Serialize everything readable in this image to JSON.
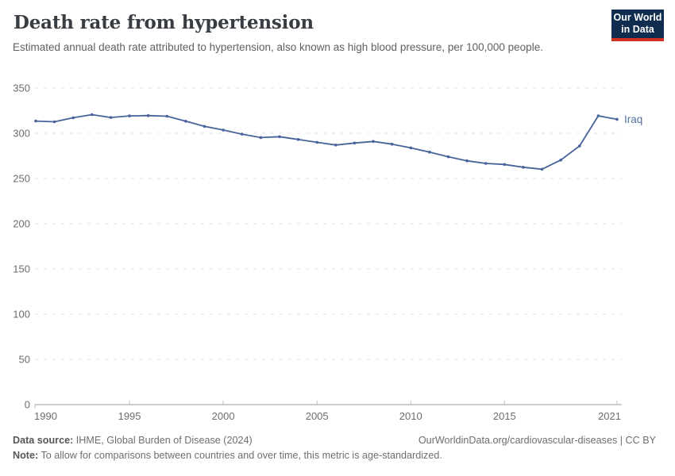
{
  "header": {
    "title": "Death rate from hypertension",
    "subtitle": "Estimated annual death rate attributed to hypertension, also known as high blood pressure, per 100,000 people.",
    "logo": {
      "line1": "Our World",
      "line2": "in Data"
    }
  },
  "chart_data": {
    "type": "line",
    "title": "Death rate from hypertension",
    "entity": "Iraq",
    "x": [
      1990,
      1991,
      1992,
      1993,
      1994,
      1995,
      1996,
      1997,
      1998,
      1999,
      2000,
      2001,
      2002,
      2003,
      2004,
      2005,
      2006,
      2007,
      2008,
      2009,
      2010,
      2011,
      2012,
      2013,
      2014,
      2015,
      2016,
      2017,
      2018,
      2019,
      2020,
      2021
    ],
    "values": [
      313.5,
      312.7,
      317.2,
      320.6,
      317.5,
      319.2,
      319.6,
      318.9,
      313.3,
      307.6,
      303.6,
      299.0,
      295.3,
      296.2,
      293.2,
      290.0,
      287.0,
      289.2,
      291.0,
      288.0,
      283.9,
      279.2,
      274.0,
      269.6,
      266.7,
      265.5,
      262.5,
      260.3,
      270.4,
      286.0,
      319.3,
      315.4
    ],
    "ylim": [
      0,
      350
    ],
    "yticks": [
      0,
      50,
      100,
      150,
      200,
      250,
      300,
      350
    ],
    "xticks": [
      1990,
      1995,
      2000,
      2005,
      2010,
      2015,
      2021
    ],
    "grid": true,
    "legend_position": "end-of-line-label",
    "line_color": "#46639b",
    "series_label_color": "#56719f",
    "grid_color": "#dcdcdc",
    "axis_color": "#9b9b9b",
    "tick_color": "#bcbcbc",
    "tick_label_color": "#6d6d6d"
  },
  "footer": {
    "source_label": "Data source:",
    "source_value": " IHME, Global Burden of Disease (2024)",
    "right_text": "OurWorldinData.org/cardiovascular-diseases | CC BY",
    "note_label": "Note:",
    "note_value": " To allow for comparisons between countries and over time, this metric is age-standardized."
  }
}
